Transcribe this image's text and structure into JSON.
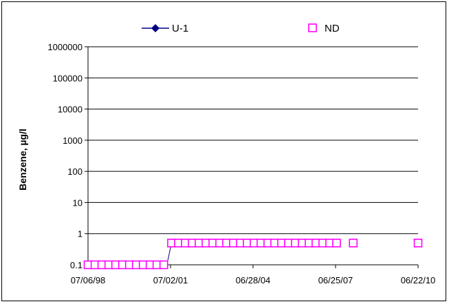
{
  "chart_data": {
    "type": "scatter",
    "ylabel": "Benzene, µg/l",
    "xlabel": "",
    "y_scale": "log",
    "ylim": [
      0.1,
      1000000
    ],
    "y_ticks": [
      "0.1",
      "1",
      "10",
      "100",
      "1000",
      "10000",
      "100000",
      "1000000"
    ],
    "x_ticks": [
      "07/06/98",
      "07/02/01",
      "06/28/04",
      "06/25/07",
      "06/22/10"
    ],
    "xlim": [
      "1998-07-06",
      "2010-06-22"
    ],
    "grid": "horizontal",
    "legend": {
      "placement": "top",
      "entries": [
        {
          "label": "U-1",
          "color": "#000080",
          "marker": "diamond-line"
        },
        {
          "label": "ND",
          "color": "#ff00ff",
          "marker": "open-square"
        }
      ]
    },
    "series": [
      {
        "name": "U-1",
        "color": "#000080",
        "points": [
          {
            "x": "2001-05-15",
            "y": 0.1
          },
          {
            "x": "2001-07-15",
            "y": 0.5
          }
        ]
      },
      {
        "name": "ND",
        "color": "#ff00ff",
        "points": [
          {
            "x": "1998-07-06",
            "y": 0.1
          },
          {
            "x": "1998-10-06",
            "y": 0.1
          },
          {
            "x": "1999-01-05",
            "y": 0.1
          },
          {
            "x": "1999-04-07",
            "y": 0.1
          },
          {
            "x": "1999-07-07",
            "y": 0.1
          },
          {
            "x": "1999-10-06",
            "y": 0.1
          },
          {
            "x": "2000-01-05",
            "y": 0.1
          },
          {
            "x": "2000-04-05",
            "y": 0.1
          },
          {
            "x": "2000-07-05",
            "y": 0.1
          },
          {
            "x": "2000-10-04",
            "y": 0.1
          },
          {
            "x": "2001-01-03",
            "y": 0.1
          },
          {
            "x": "2001-04-04",
            "y": 0.1
          },
          {
            "x": "2001-07-15",
            "y": 0.5
          },
          {
            "x": "2001-10-15",
            "y": 0.5
          },
          {
            "x": "2002-01-14",
            "y": 0.5
          },
          {
            "x": "2002-04-15",
            "y": 0.5
          },
          {
            "x": "2002-07-15",
            "y": 0.5
          },
          {
            "x": "2002-10-14",
            "y": 0.5
          },
          {
            "x": "2003-01-13",
            "y": 0.5
          },
          {
            "x": "2003-04-14",
            "y": 0.5
          },
          {
            "x": "2003-07-14",
            "y": 0.5
          },
          {
            "x": "2003-10-13",
            "y": 0.5
          },
          {
            "x": "2004-01-12",
            "y": 0.5
          },
          {
            "x": "2004-04-12",
            "y": 0.5
          },
          {
            "x": "2004-07-12",
            "y": 0.5
          },
          {
            "x": "2004-10-11",
            "y": 0.5
          },
          {
            "x": "2005-01-10",
            "y": 0.5
          },
          {
            "x": "2005-04-11",
            "y": 0.5
          },
          {
            "x": "2005-07-11",
            "y": 0.5
          },
          {
            "x": "2005-10-10",
            "y": 0.5
          },
          {
            "x": "2006-01-09",
            "y": 0.5
          },
          {
            "x": "2006-04-10",
            "y": 0.5
          },
          {
            "x": "2006-07-10",
            "y": 0.5
          },
          {
            "x": "2006-10-09",
            "y": 0.5
          },
          {
            "x": "2007-01-08",
            "y": 0.5
          },
          {
            "x": "2007-04-09",
            "y": 0.5
          },
          {
            "x": "2007-07-09",
            "y": 0.5
          },
          {
            "x": "2008-02-15",
            "y": 0.5
          },
          {
            "x": "2010-06-22",
            "y": 0.5
          }
        ]
      }
    ]
  }
}
